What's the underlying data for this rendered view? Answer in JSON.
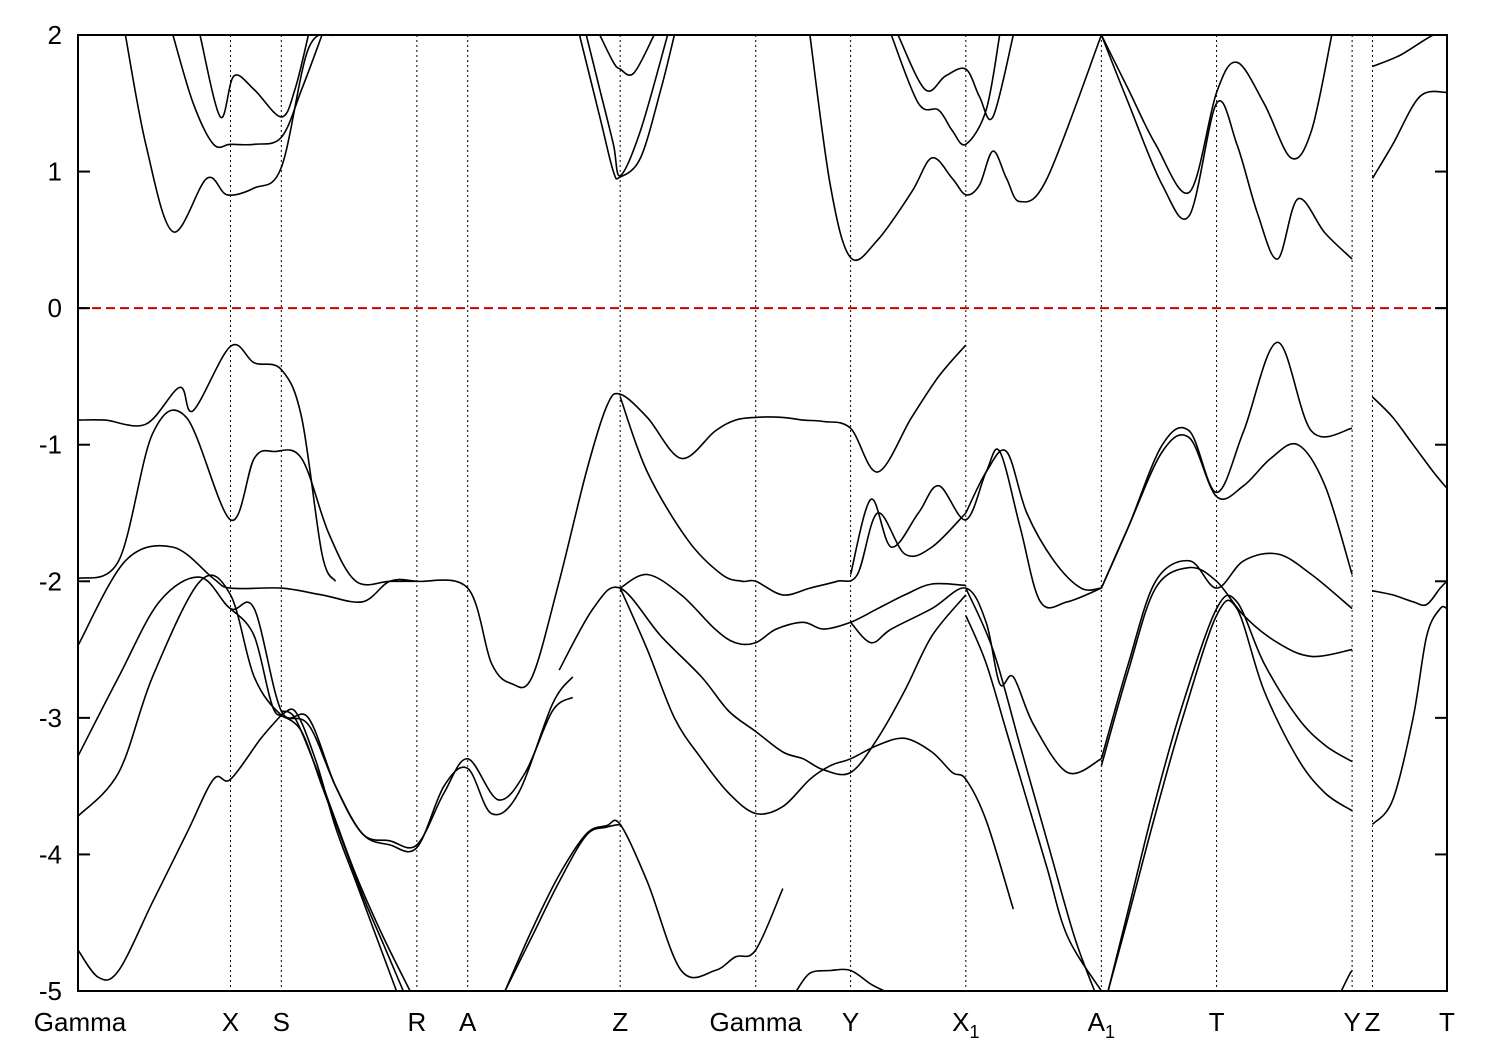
{
  "chart_data": {
    "type": "line",
    "title": "",
    "xlabel": "",
    "ylabel": "",
    "ylim": [
      -5,
      2
    ],
    "yticks": [
      -5,
      -4,
      -3,
      -2,
      -1,
      0,
      1,
      2
    ],
    "grid": false,
    "fermi_level": 0,
    "fermi_color": "#cc0000",
    "line_color": "#000000",
    "kpoints": [
      {
        "label": "Gamma",
        "sub": "",
        "x": 0
      },
      {
        "label": "X",
        "sub": "",
        "x": 1.125
      },
      {
        "label": "S",
        "sub": "",
        "x": 1.5
      },
      {
        "label": "R",
        "sub": "",
        "x": 2.5
      },
      {
        "label": "A",
        "sub": "",
        "x": 2.875
      },
      {
        "label": "Z",
        "sub": "",
        "x": 4.0
      },
      {
        "label": "Gamma",
        "sub": "",
        "x": 5.0
      },
      {
        "label": "Y",
        "sub": "",
        "x": 5.7
      },
      {
        "label": "X",
        "sub": "1",
        "x": 6.55
      },
      {
        "label": "A",
        "sub": "1",
        "x": 7.55
      },
      {
        "label": "T",
        "sub": "",
        "x": 8.4
      },
      {
        "label": "Y",
        "sub": "",
        "x": 9.4
      },
      {
        "label": "Z",
        "sub": "",
        "x": 9.55
      },
      {
        "label": "T",
        "sub": "",
        "x": 10.1
      }
    ],
    "xlim": [
      0,
      10.1
    ],
    "series": [
      {
        "x": [
          0.35,
          0.5,
          0.7,
          0.95,
          1.1,
          1.3,
          1.5,
          1.7,
          1.9,
          2.05
        ],
        "values": [
          2.0,
          1.2,
          0.56,
          0.95,
          0.83,
          0.88,
          1.03,
          1.9,
          2.0,
          2.0
        ]
      },
      {
        "x": [
          0.7,
          0.85,
          1.0,
          1.125,
          1.3,
          1.5,
          1.65,
          1.8
        ],
        "values": [
          2.0,
          1.5,
          1.2,
          1.2,
          1.2,
          1.25,
          1.6,
          2.0
        ]
      },
      {
        "x": [
          0.9,
          1.05,
          1.15,
          1.3,
          1.5,
          1.6,
          1.7
        ],
        "values": [
          2.0,
          1.4,
          1.7,
          1.6,
          1.4,
          1.6,
          2.0
        ]
      },
      {
        "x": [
          3.7,
          3.85,
          3.95,
          4.0,
          4.15,
          4.3,
          4.4
        ],
        "values": [
          2.0,
          1.4,
          1.0,
          0.96,
          1.1,
          1.6,
          2.0
        ]
      },
      {
        "x": [
          3.75,
          3.85,
          3.95,
          4.0,
          4.15,
          4.35
        ],
        "values": [
          2.0,
          1.6,
          1.2,
          0.97,
          1.3,
          2.0
        ]
      },
      {
        "x": [
          3.85,
          3.95,
          4.0,
          4.1,
          4.25
        ],
        "values": [
          2.0,
          1.8,
          1.75,
          1.72,
          2.0
        ]
      },
      {
        "x": [
          5.4,
          5.55,
          5.7,
          5.9,
          6.15,
          6.3,
          6.45,
          6.55,
          6.65,
          6.75,
          6.85,
          6.95,
          7.15,
          7.55
        ],
        "values": [
          2.0,
          0.9,
          0.37,
          0.5,
          0.85,
          1.1,
          0.95,
          0.83,
          0.9,
          1.15,
          0.95,
          0.78,
          0.95,
          2.0
        ]
      },
      {
        "x": [
          6.0,
          6.2,
          6.35,
          6.45,
          6.55,
          6.7,
          6.8
        ],
        "values": [
          2.0,
          1.5,
          1.45,
          1.3,
          1.2,
          1.45,
          2.0
        ]
      },
      {
        "x": [
          6.05,
          6.25,
          6.4,
          6.55,
          6.65,
          6.75,
          6.9
        ],
        "values": [
          2.0,
          1.6,
          1.7,
          1.75,
          1.55,
          1.4,
          2.0
        ]
      },
      {
        "x": [
          7.55,
          7.75,
          8.0,
          8.2,
          8.4,
          8.55,
          8.7,
          8.85,
          9.0,
          9.2,
          9.4
        ],
        "values": [
          2.0,
          1.5,
          0.9,
          0.68,
          1.5,
          1.2,
          0.7,
          0.36,
          0.8,
          0.55,
          0.36
        ]
      },
      {
        "x": [
          7.55,
          7.75,
          7.95,
          8.2,
          8.4,
          8.55,
          8.75,
          8.95,
          9.1,
          9.25
        ],
        "values": [
          2.0,
          1.6,
          1.2,
          0.85,
          1.58,
          1.8,
          1.5,
          1.1,
          1.3,
          2.0
        ]
      },
      {
        "x": [
          9.55,
          9.75,
          10.0,
          10.1
        ],
        "values": [
          1.77,
          1.85,
          2.0,
          2.0
        ]
      },
      {
        "x": [
          9.55,
          9.7,
          9.9,
          10.1
        ],
        "values": [
          0.95,
          1.2,
          1.55,
          1.58
        ]
      },
      {
        "x": [
          0,
          0.2,
          0.5,
          0.75,
          0.85,
          1.125,
          1.3,
          1.5,
          1.65,
          1.8,
          1.9
        ],
        "values": [
          -0.82,
          -0.82,
          -0.85,
          -0.58,
          -0.75,
          -0.28,
          -0.4,
          -0.45,
          -0.8,
          -1.8,
          -2.0
        ]
      },
      {
        "x": [
          0,
          0.3,
          0.55,
          0.8,
          1.125,
          1.3,
          1.45,
          1.65,
          1.85,
          2.05,
          2.3,
          2.5
        ],
        "values": [
          -1.98,
          -1.85,
          -0.92,
          -0.8,
          -1.55,
          -1.1,
          -1.05,
          -1.1,
          -1.65,
          -2.0,
          -2.0,
          -2.0
        ]
      },
      {
        "x": [
          0,
          0.35,
          0.7,
          1.0,
          1.125,
          1.5,
          1.8,
          2.1,
          2.3,
          2.5,
          2.875,
          3.05,
          3.2,
          3.35,
          3.55,
          3.75,
          3.9,
          4.0,
          4.2,
          4.45,
          4.7,
          4.85,
          5.0,
          5.2,
          5.35,
          5.5,
          5.7,
          5.9,
          6.15,
          6.35,
          6.55
        ],
        "values": [
          -2.47,
          -1.85,
          -1.75,
          -1.98,
          -2.05,
          -2.05,
          -2.1,
          -2.15,
          -2.0,
          -2.0,
          -2.05,
          -2.6,
          -2.75,
          -2.7,
          -2.0,
          -1.2,
          -0.72,
          -0.63,
          -0.8,
          -1.1,
          -0.9,
          -0.82,
          -0.8,
          -0.8,
          -0.82,
          -0.83,
          -0.88,
          -1.2,
          -0.8,
          -0.5,
          -0.27
        ]
      },
      {
        "x": [
          0,
          0.3,
          0.6,
          0.9,
          1.125,
          1.3,
          1.5,
          1.7,
          1.9,
          2.1,
          2.3,
          2.5,
          2.7,
          2.875,
          3.1,
          3.3,
          3.5,
          3.65
        ],
        "values": [
          -3.28,
          -2.7,
          -2.15,
          -1.97,
          -2.2,
          -2.2,
          -2.95,
          -3.0,
          -3.5,
          -3.85,
          -3.9,
          -3.93,
          -3.55,
          -3.3,
          -3.6,
          -3.4,
          -2.95,
          -2.85
        ]
      },
      {
        "x": [
          0,
          0.3,
          0.55,
          0.9,
          1.125,
          1.3,
          1.5,
          1.7,
          1.9,
          2.1,
          2.3,
          2.5,
          2.7,
          2.875,
          3.05,
          3.25,
          3.5,
          3.65
        ],
        "values": [
          -3.72,
          -3.4,
          -2.7,
          -2.0,
          -2.1,
          -2.7,
          -2.98,
          -3.05,
          -3.5,
          -3.85,
          -3.93,
          -3.95,
          -3.5,
          -3.37,
          -3.7,
          -3.55,
          -2.9,
          -2.7
        ]
      },
      {
        "x": [
          0,
          0.15,
          0.3,
          0.55,
          0.8,
          1.0,
          1.125,
          1.35,
          1.5
        ],
        "values": [
          -4.7,
          -4.9,
          -4.85,
          -4.35,
          -3.85,
          -3.45,
          -3.45,
          -3.15,
          -2.98
        ]
      },
      {
        "x": [
          1.125,
          1.3,
          1.45,
          1.6,
          1.75,
          1.9,
          2.05,
          2.2,
          2.35
        ],
        "values": [
          -2.2,
          -2.4,
          -2.95,
          -2.95,
          -3.3,
          -3.8,
          -4.2,
          -4.6,
          -5.0
        ]
      },
      {
        "x": [
          1.5,
          1.65,
          1.8,
          1.95,
          2.1,
          2.25,
          2.4
        ],
        "values": [
          -2.98,
          -3.1,
          -3.5,
          -3.9,
          -4.3,
          -4.65,
          -5.0
        ]
      },
      {
        "x": [
          1.5,
          1.6,
          1.75,
          1.9,
          2.05,
          2.25,
          2.45
        ],
        "values": [
          -2.95,
          -3.0,
          -3.35,
          -3.75,
          -4.15,
          -4.6,
          -5.0
        ]
      },
      {
        "x": [
          3.15,
          3.35,
          3.55,
          3.75,
          3.9,
          4.0,
          4.2,
          4.45,
          4.7,
          4.85,
          5.0,
          5.2
        ],
        "values": [
          -5.0,
          -4.55,
          -4.15,
          -3.85,
          -3.79,
          -3.78,
          -4.2,
          -4.85,
          -4.85,
          -4.75,
          -4.7,
          -4.25
        ]
      },
      {
        "x": [
          3.15,
          3.35,
          3.55,
          3.75,
          3.9,
          4.0
        ],
        "values": [
          -5.0,
          -4.6,
          -4.2,
          -3.86,
          -3.8,
          -3.78
        ]
      },
      {
        "x": [
          3.55,
          3.8,
          4.0,
          4.3,
          4.6,
          4.8,
          5.0,
          5.2,
          5.35,
          5.5,
          5.7,
          5.9,
          6.1,
          6.3,
          6.55
        ],
        "values": [
          -2.65,
          -2.2,
          -2.05,
          -2.4,
          -2.7,
          -2.95,
          -3.1,
          -3.25,
          -3.3,
          -3.38,
          -3.4,
          -3.15,
          -2.8,
          -2.4,
          -2.1
        ]
      },
      {
        "x": [
          4.0,
          4.2,
          4.45,
          4.7,
          4.85,
          5.0,
          5.15,
          5.35,
          5.5,
          5.7,
          5.9,
          6.1,
          6.3,
          6.55
        ],
        "values": [
          -2.05,
          -1.95,
          -2.1,
          -2.35,
          -2.45,
          -2.45,
          -2.35,
          -2.3,
          -2.35,
          -2.3,
          -2.2,
          -2.1,
          -2.02,
          -2.03
        ]
      },
      {
        "x": [
          4.0,
          4.2,
          4.4,
          4.6,
          4.8,
          5.0,
          5.2,
          5.4,
          5.55,
          5.7,
          5.9,
          6.1,
          6.3,
          6.45,
          6.55,
          6.7,
          6.9
        ],
        "values": [
          -2.05,
          -2.5,
          -3.0,
          -3.3,
          -3.55,
          -3.7,
          -3.65,
          -3.45,
          -3.35,
          -3.3,
          -3.2,
          -3.15,
          -3.25,
          -3.4,
          -3.45,
          -3.75,
          -4.4
        ]
      },
      {
        "x": [
          4.0,
          4.2,
          4.5,
          4.75,
          4.9,
          5.0,
          5.2,
          5.4,
          5.6,
          5.75,
          5.9,
          6.1,
          6.3,
          6.55
        ],
        "values": [
          -0.65,
          -1.2,
          -1.7,
          -1.95,
          -2.0,
          -2.0,
          -2.1,
          -2.05,
          -2.0,
          -1.95,
          -1.5,
          -1.8,
          -1.75,
          -1.5
        ]
      },
      {
        "x": [
          5.7,
          5.85,
          6.0,
          6.3,
          6.55,
          6.7,
          6.8,
          6.9,
          7.05,
          7.3,
          7.55
        ],
        "values": [
          -2.3,
          -2.45,
          -2.35,
          -2.2,
          -2.05,
          -2.3,
          -2.75,
          -2.7,
          -3.05,
          -3.4,
          -3.3
        ]
      },
      {
        "x": [
          5.7,
          5.85,
          6.0,
          6.2,
          6.35,
          6.55,
          6.7,
          6.8,
          6.95,
          7.1,
          7.3,
          7.55
        ],
        "values": [
          -1.95,
          -1.4,
          -1.75,
          -1.5,
          -1.3,
          -1.55,
          -1.2,
          -1.05,
          -1.6,
          -2.15,
          -2.15,
          -2.05
        ]
      },
      {
        "x": [
          6.55,
          6.7,
          6.85,
          7.0,
          7.2,
          7.4,
          7.55
        ],
        "values": [
          -1.5,
          -1.2,
          -1.05,
          -1.5,
          -1.85,
          -2.05,
          -2.05
        ]
      },
      {
        "x": [
          6.55,
          6.7,
          6.85,
          7.0,
          7.15,
          7.3,
          7.55
        ],
        "values": [
          -2.25,
          -2.6,
          -3.1,
          -3.6,
          -4.1,
          -4.6,
          -5.0
        ]
      },
      {
        "x": [
          6.55,
          6.75,
          6.95,
          7.15,
          7.35,
          7.5
        ],
        "values": [
          -2.05,
          -2.5,
          -3.2,
          -3.9,
          -4.6,
          -5.0
        ]
      },
      {
        "x": [
          5.3,
          5.4,
          5.55,
          5.7,
          5.85,
          5.95
        ],
        "values": [
          -5.0,
          -4.87,
          -4.85,
          -4.85,
          -4.95,
          -5.0
        ]
      },
      {
        "x": [
          7.55,
          7.75,
          8.0,
          8.2,
          8.4,
          8.6,
          8.85,
          9.1,
          9.4
        ],
        "values": [
          -2.05,
          -1.6,
          -1.0,
          -0.9,
          -1.35,
          -0.9,
          -0.25,
          -0.9,
          -0.88
        ]
      },
      {
        "x": [
          7.55,
          7.75,
          8.0,
          8.2,
          8.4,
          8.6,
          8.8,
          9.0,
          9.2,
          9.4
        ],
        "values": [
          -2.05,
          -1.6,
          -1.05,
          -0.95,
          -1.38,
          -1.3,
          -1.1,
          -1.0,
          -1.3,
          -1.95
        ]
      },
      {
        "x": [
          7.55,
          7.75,
          7.95,
          8.2,
          8.4,
          8.6,
          8.85,
          9.1,
          9.4
        ],
        "values": [
          -3.3,
          -2.6,
          -2.0,
          -1.85,
          -2.05,
          -1.85,
          -1.8,
          -1.95,
          -2.2
        ]
      },
      {
        "x": [
          7.55,
          7.75,
          7.95,
          8.2,
          8.4,
          8.6,
          8.85,
          9.1,
          9.4
        ],
        "values": [
          -3.35,
          -2.65,
          -2.05,
          -1.9,
          -2.0,
          -2.25,
          -2.45,
          -2.55,
          -2.5
        ]
      },
      {
        "x": [
          7.6,
          7.75,
          7.95,
          8.15,
          8.4,
          8.55,
          8.75,
          9.0,
          9.2,
          9.4
        ],
        "values": [
          -5.0,
          -4.4,
          -3.6,
          -2.9,
          -2.2,
          -2.15,
          -2.6,
          -3.0,
          -3.2,
          -3.32
        ]
      },
      {
        "x": [
          7.6,
          7.75,
          7.95,
          8.15,
          8.4,
          8.55,
          8.75,
          9.0,
          9.2,
          9.4
        ],
        "values": [
          -5.0,
          -4.45,
          -3.7,
          -3.0,
          -2.25,
          -2.2,
          -2.8,
          -3.3,
          -3.55,
          -3.68
        ]
      },
      {
        "x": [
          9.32,
          9.38,
          9.4
        ],
        "values": [
          -5.0,
          -4.88,
          -4.85
        ]
      },
      {
        "x": [
          9.55,
          9.7,
          9.85,
          10.0,
          10.1
        ],
        "values": [
          -0.65,
          -0.8,
          -1.0,
          -1.2,
          -1.32
        ]
      },
      {
        "x": [
          9.55,
          9.7,
          9.85,
          9.95,
          10.05,
          10.1
        ],
        "values": [
          -2.07,
          -2.1,
          -2.15,
          -2.17,
          -2.05,
          -2.0
        ]
      },
      {
        "x": [
          9.55,
          9.7,
          9.85,
          9.95,
          10.05,
          10.1
        ],
        "values": [
          -3.78,
          -3.6,
          -3.0,
          -2.4,
          -2.2,
          -2.2
        ]
      }
    ]
  }
}
